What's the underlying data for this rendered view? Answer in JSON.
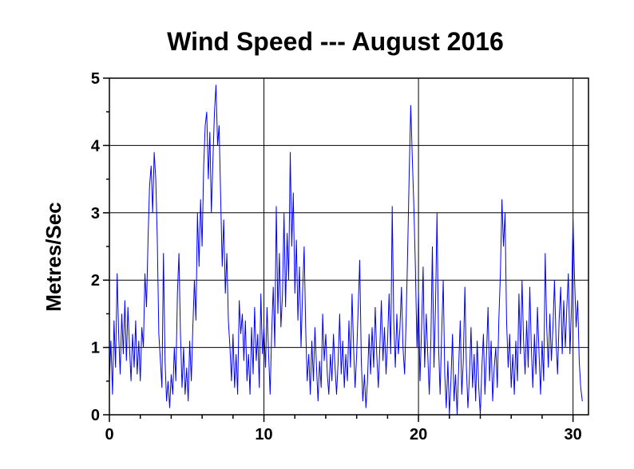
{
  "chart_data": {
    "type": "line",
    "title": "Wind Speed --- August 2016",
    "xlabel": "",
    "ylabel": "Metres/Sec",
    "xlim": [
      0,
      31
    ],
    "ylim": [
      0,
      5
    ],
    "x_ticks": [
      0,
      10,
      20,
      30
    ],
    "x_minor_step": 2,
    "y_ticks": [
      0,
      1,
      2,
      3,
      4,
      5
    ],
    "grid": true,
    "series_color": "#0000ff",
    "points": [
      [
        0.0,
        0.5
      ],
      [
        0.1,
        1.1
      ],
      [
        0.2,
        0.3
      ],
      [
        0.3,
        1.4
      ],
      [
        0.4,
        0.7
      ],
      [
        0.5,
        2.1
      ],
      [
        0.6,
        1.2
      ],
      [
        0.7,
        0.6
      ],
      [
        0.8,
        1.5
      ],
      [
        0.9,
        0.9
      ],
      [
        1.0,
        1.7
      ],
      [
        1.1,
        0.8
      ],
      [
        1.2,
        1.6
      ],
      [
        1.3,
        1.0
      ],
      [
        1.4,
        0.5
      ],
      [
        1.5,
        1.2
      ],
      [
        1.6,
        0.7
      ],
      [
        1.7,
        1.4
      ],
      [
        1.8,
        0.6
      ],
      [
        1.9,
        1.1
      ],
      [
        2.0,
        0.5
      ],
      [
        2.1,
        1.3
      ],
      [
        2.2,
        1.0
      ],
      [
        2.3,
        2.1
      ],
      [
        2.4,
        1.6
      ],
      [
        2.5,
        2.6
      ],
      [
        2.6,
        3.4
      ],
      [
        2.7,
        3.7
      ],
      [
        2.8,
        3.0
      ],
      [
        2.9,
        3.9
      ],
      [
        3.0,
        3.5
      ],
      [
        3.1,
        2.6
      ],
      [
        3.2,
        1.2
      ],
      [
        3.3,
        0.8
      ],
      [
        3.4,
        0.4
      ],
      [
        3.5,
        2.4
      ],
      [
        3.6,
        0.8
      ],
      [
        3.7,
        0.2
      ],
      [
        3.8,
        0.5
      ],
      [
        3.9,
        0.1
      ],
      [
        4.0,
        0.6
      ],
      [
        4.1,
        0.3
      ],
      [
        4.2,
        1.0
      ],
      [
        4.3,
        0.5
      ],
      [
        4.4,
        1.8
      ],
      [
        4.5,
        2.4
      ],
      [
        4.6,
        1.2
      ],
      [
        4.7,
        0.4
      ],
      [
        4.8,
        1.0
      ],
      [
        4.9,
        0.3
      ],
      [
        5.0,
        0.7
      ],
      [
        5.1,
        0.2
      ],
      [
        5.2,
        1.1
      ],
      [
        5.3,
        0.5
      ],
      [
        5.4,
        1.3
      ],
      [
        5.5,
        2.0
      ],
      [
        5.6,
        1.4
      ],
      [
        5.7,
        3.0
      ],
      [
        5.8,
        2.2
      ],
      [
        5.9,
        3.2
      ],
      [
        6.0,
        2.5
      ],
      [
        6.1,
        3.7
      ],
      [
        6.2,
        4.3
      ],
      [
        6.3,
        4.5
      ],
      [
        6.4,
        3.5
      ],
      [
        6.5,
        4.2
      ],
      [
        6.6,
        3.0
      ],
      [
        6.7,
        3.8
      ],
      [
        6.8,
        4.5
      ],
      [
        6.9,
        4.9
      ],
      [
        7.0,
        4.0
      ],
      [
        7.1,
        4.3
      ],
      [
        7.2,
        3.2
      ],
      [
        7.3,
        2.2
      ],
      [
        7.4,
        2.9
      ],
      [
        7.5,
        1.8
      ],
      [
        7.6,
        2.4
      ],
      [
        7.7,
        1.4
      ],
      [
        7.8,
        1.0
      ],
      [
        7.9,
        0.5
      ],
      [
        8.0,
        1.2
      ],
      [
        8.1,
        0.4
      ],
      [
        8.2,
        0.9
      ],
      [
        8.3,
        0.3
      ],
      [
        8.4,
        1.7
      ],
      [
        8.5,
        1.2
      ],
      [
        8.6,
        1.5
      ],
      [
        8.7,
        0.8
      ],
      [
        8.8,
        1.4
      ],
      [
        8.9,
        0.5
      ],
      [
        9.0,
        0.9
      ],
      [
        9.1,
        0.3
      ],
      [
        9.2,
        1.3
      ],
      [
        9.3,
        0.6
      ],
      [
        9.4,
        1.6
      ],
      [
        9.5,
        0.8
      ],
      [
        9.6,
        1.2
      ],
      [
        9.7,
        0.4
      ],
      [
        9.8,
        1.8
      ],
      [
        9.9,
        0.9
      ],
      [
        10.0,
        1.3
      ],
      [
        10.1,
        0.7
      ],
      [
        10.2,
        1.6
      ],
      [
        10.3,
        0.9
      ],
      [
        10.4,
        0.3
      ],
      [
        10.5,
        1.2
      ],
      [
        10.6,
        1.9
      ],
      [
        10.7,
        1.0
      ],
      [
        10.8,
        3.1
      ],
      [
        10.9,
        1.5
      ],
      [
        11.0,
        2.4
      ],
      [
        11.1,
        1.3
      ],
      [
        11.2,
        1.8
      ],
      [
        11.3,
        3.0
      ],
      [
        11.4,
        1.6
      ],
      [
        11.5,
        2.7
      ],
      [
        11.6,
        2.0
      ],
      [
        11.7,
        3.9
      ],
      [
        11.8,
        2.5
      ],
      [
        11.9,
        3.3
      ],
      [
        12.0,
        1.8
      ],
      [
        12.1,
        2.6
      ],
      [
        12.2,
        1.4
      ],
      [
        12.3,
        2.2
      ],
      [
        12.4,
        1.0
      ],
      [
        12.5,
        1.8
      ],
      [
        12.6,
        2.5
      ],
      [
        12.7,
        1.3
      ],
      [
        12.8,
        0.5
      ],
      [
        12.9,
        0.9
      ],
      [
        13.0,
        0.3
      ],
      [
        13.1,
        1.1
      ],
      [
        13.2,
        0.5
      ],
      [
        13.3,
        1.3
      ],
      [
        13.4,
        0.7
      ],
      [
        13.5,
        0.2
      ],
      [
        13.6,
        0.8
      ],
      [
        13.7,
        0.4
      ],
      [
        13.8,
        1.5
      ],
      [
        13.9,
        0.8
      ],
      [
        14.0,
        1.2
      ],
      [
        14.1,
        0.6
      ],
      [
        14.2,
        0.3
      ],
      [
        14.3,
        0.9
      ],
      [
        14.4,
        0.5
      ],
      [
        14.5,
        1.2
      ],
      [
        14.6,
        0.7
      ],
      [
        14.7,
        0.3
      ],
      [
        14.8,
        0.8
      ],
      [
        14.9,
        1.5
      ],
      [
        15.0,
        0.6
      ],
      [
        15.1,
        1.1
      ],
      [
        15.2,
        0.4
      ],
      [
        15.3,
        0.9
      ],
      [
        15.4,
        0.5
      ],
      [
        15.5,
        1.4
      ],
      [
        15.6,
        0.7
      ],
      [
        15.7,
        1.8
      ],
      [
        15.8,
        1.0
      ],
      [
        15.9,
        0.4
      ],
      [
        16.0,
        0.9
      ],
      [
        16.1,
        1.6
      ],
      [
        16.2,
        2.3
      ],
      [
        16.3,
        0.8
      ],
      [
        16.4,
        0.2
      ],
      [
        16.5,
        0.6
      ],
      [
        16.6,
        0.1
      ],
      [
        16.7,
        0.5
      ],
      [
        16.8,
        1.2
      ],
      [
        16.9,
        0.6
      ],
      [
        17.0,
        1.3
      ],
      [
        17.1,
        0.7
      ],
      [
        17.2,
        1.6
      ],
      [
        17.3,
        0.9
      ],
      [
        17.4,
        0.4
      ],
      [
        17.5,
        1.0
      ],
      [
        17.6,
        1.7
      ],
      [
        17.7,
        0.8
      ],
      [
        17.8,
        1.3
      ],
      [
        17.9,
        0.6
      ],
      [
        18.0,
        1.1
      ],
      [
        18.1,
        1.8
      ],
      [
        18.2,
        0.9
      ],
      [
        18.3,
        3.1
      ],
      [
        18.4,
        1.4
      ],
      [
        18.5,
        0.7
      ],
      [
        18.6,
        1.5
      ],
      [
        18.7,
        0.9
      ],
      [
        18.8,
        1.3
      ],
      [
        18.9,
        1.9
      ],
      [
        19.0,
        1.0
      ],
      [
        19.1,
        0.6
      ],
      [
        19.2,
        1.4
      ],
      [
        19.3,
        2.4
      ],
      [
        19.4,
        3.6
      ],
      [
        19.5,
        4.6
      ],
      [
        19.6,
        3.8
      ],
      [
        19.7,
        3.1
      ],
      [
        19.8,
        2.2
      ],
      [
        19.9,
        1.0
      ],
      [
        20.0,
        1.8
      ],
      [
        20.1,
        0.5
      ],
      [
        20.2,
        1.3
      ],
      [
        20.3,
        2.2
      ],
      [
        20.4,
        0.7
      ],
      [
        20.5,
        1.5
      ],
      [
        20.6,
        0.9
      ],
      [
        20.7,
        0.3
      ],
      [
        20.8,
        1.1
      ],
      [
        20.9,
        2.5
      ],
      [
        21.0,
        0.7
      ],
      [
        21.1,
        1.6
      ],
      [
        21.2,
        3.0
      ],
      [
        21.3,
        1.0
      ],
      [
        21.4,
        0.3
      ],
      [
        21.5,
        1.2
      ],
      [
        21.6,
        2.0
      ],
      [
        21.7,
        0.6
      ],
      [
        21.8,
        0.1
      ],
      [
        21.9,
        0.8
      ],
      [
        22.0,
        0.0
      ],
      [
        22.1,
        0.5
      ],
      [
        22.2,
        1.2
      ],
      [
        22.3,
        0.2
      ],
      [
        22.4,
        0.6
      ],
      [
        22.5,
        0.0
      ],
      [
        22.6,
        0.7
      ],
      [
        22.7,
        1.4
      ],
      [
        22.8,
        0.3
      ],
      [
        22.9,
        0.8
      ],
      [
        23.0,
        1.9
      ],
      [
        23.1,
        0.7
      ],
      [
        23.2,
        0.1
      ],
      [
        23.3,
        0.6
      ],
      [
        23.4,
        1.3
      ],
      [
        23.5,
        0.4
      ],
      [
        23.6,
        0.9
      ],
      [
        23.7,
        0.2
      ],
      [
        23.8,
        1.1
      ],
      [
        23.9,
        0.4
      ],
      [
        24.0,
        0.0
      ],
      [
        24.1,
        0.7
      ],
      [
        24.2,
        1.2
      ],
      [
        24.3,
        0.3
      ],
      [
        24.4,
        0.9
      ],
      [
        24.5,
        1.6
      ],
      [
        24.6,
        0.5
      ],
      [
        24.7,
        1.1
      ],
      [
        24.8,
        0.2
      ],
      [
        24.9,
        0.7
      ],
      [
        25.0,
        1.0
      ],
      [
        25.1,
        0.4
      ],
      [
        25.2,
        1.4
      ],
      [
        25.3,
        2.1
      ],
      [
        25.4,
        3.2
      ],
      [
        25.5,
        2.5
      ],
      [
        25.6,
        3.0
      ],
      [
        25.7,
        1.4
      ],
      [
        25.8,
        0.7
      ],
      [
        25.9,
        1.2
      ],
      [
        26.0,
        0.4
      ],
      [
        26.1,
        0.9
      ],
      [
        26.2,
        0.3
      ],
      [
        26.3,
        1.1
      ],
      [
        26.4,
        0.5
      ],
      [
        26.5,
        1.8
      ],
      [
        26.6,
        0.9
      ],
      [
        26.7,
        2.0
      ],
      [
        26.8,
        1.1
      ],
      [
        26.9,
        0.6
      ],
      [
        27.0,
        1.4
      ],
      [
        27.1,
        0.7
      ],
      [
        27.2,
        1.9
      ],
      [
        27.3,
        1.0
      ],
      [
        27.4,
        0.4
      ],
      [
        27.5,
        1.2
      ],
      [
        27.6,
        0.6
      ],
      [
        27.7,
        1.6
      ],
      [
        27.8,
        0.9
      ],
      [
        27.9,
        0.3
      ],
      [
        28.0,
        1.1
      ],
      [
        28.1,
        0.5
      ],
      [
        28.2,
        2.4
      ],
      [
        28.3,
        1.3
      ],
      [
        28.4,
        0.7
      ],
      [
        28.5,
        1.5
      ],
      [
        28.6,
        0.8
      ],
      [
        28.7,
        1.3
      ],
      [
        28.8,
        2.0
      ],
      [
        28.9,
        1.1
      ],
      [
        29.0,
        0.6
      ],
      [
        29.1,
        1.4
      ],
      [
        29.2,
        1.9
      ],
      [
        29.3,
        0.9
      ],
      [
        29.4,
        1.7
      ],
      [
        29.5,
        1.0
      ],
      [
        29.6,
        1.6
      ],
      [
        29.7,
        2.1
      ],
      [
        29.8,
        0.9
      ],
      [
        29.9,
        1.6
      ],
      [
        30.0,
        2.9
      ],
      [
        30.1,
        2.0
      ],
      [
        30.2,
        1.3
      ],
      [
        30.3,
        1.7
      ],
      [
        30.4,
        0.8
      ],
      [
        30.5,
        0.4
      ],
      [
        30.6,
        0.2
      ]
    ]
  }
}
